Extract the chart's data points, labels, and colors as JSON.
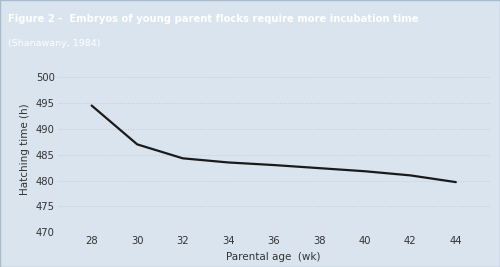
{
  "title_line1": "Figure 2 -  Embryos of young parent flocks require more incubation time",
  "title_line2": "(Shanawany, 1984)",
  "x": [
    28,
    30,
    32,
    34,
    36,
    38,
    40,
    42,
    44
  ],
  "y": [
    494.5,
    487.0,
    484.3,
    483.5,
    483.0,
    482.4,
    481.8,
    481.0,
    479.7
  ],
  "xlabel": "Parental age  (wk)",
  "ylabel": "Hatching time (h)",
  "xlim": [
    26.5,
    45.5
  ],
  "ylim": [
    470,
    502
  ],
  "yticks": [
    470,
    475,
    480,
    485,
    490,
    495,
    500
  ],
  "xticks": [
    28,
    30,
    32,
    34,
    36,
    38,
    40,
    42,
    44
  ],
  "line_color": "#1a1a1a",
  "plot_bg_color": "#d9e4ef",
  "header_bg_color": "#2e6da4",
  "header_text_color": "#ffffff",
  "grid_color": "#c0ccd8",
  "figure_bg_color": "#d9e4ef",
  "outer_border_color": "#aabbcc"
}
